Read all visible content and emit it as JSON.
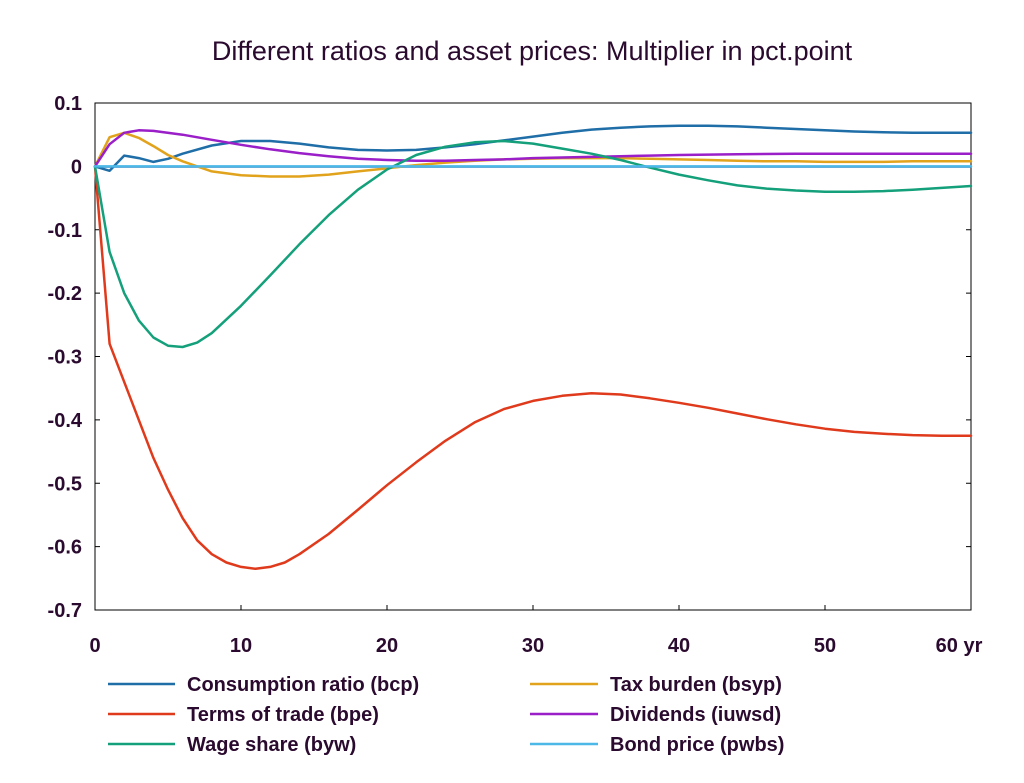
{
  "chart_data": {
    "type": "line",
    "title": "Different ratios and asset prices: Multiplier in pct.point",
    "xlabel": "",
    "ylabel": "",
    "xlim": [
      0,
      60
    ],
    "ylim": [
      -0.7,
      0.1
    ],
    "x_ticks": [
      0,
      10,
      20,
      30,
      40,
      50,
      60
    ],
    "x_tick_labels": [
      "0",
      "10",
      "20",
      "30",
      "40",
      "50",
      "60 yr"
    ],
    "y_ticks": [
      0.1,
      0,
      -0.1,
      -0.2,
      -0.3,
      -0.4,
      -0.5,
      -0.6,
      -0.7
    ],
    "y_tick_labels": [
      "0.1",
      "0",
      "-0.1",
      "-0.2",
      "-0.3",
      "-0.4",
      "-0.5",
      "-0.6",
      "-0.7"
    ],
    "grid": false,
    "legend_position": "bottom",
    "series": [
      {
        "name": "Consumption ratio (bcp)",
        "color": "#1f6ea8",
        "points": [
          [
            0,
            0
          ],
          [
            1,
            -0.007
          ],
          [
            2,
            0.017
          ],
          [
            3,
            0.013
          ],
          [
            4,
            0.007
          ],
          [
            5,
            0.012
          ],
          [
            6,
            0.02
          ],
          [
            8,
            0.033
          ],
          [
            10,
            0.04
          ],
          [
            12,
            0.04
          ],
          [
            14,
            0.036
          ],
          [
            16,
            0.03
          ],
          [
            18,
            0.026
          ],
          [
            20,
            0.025
          ],
          [
            22,
            0.026
          ],
          [
            24,
            0.03
          ],
          [
            26,
            0.035
          ],
          [
            28,
            0.041
          ],
          [
            30,
            0.047
          ],
          [
            32,
            0.053
          ],
          [
            34,
            0.058
          ],
          [
            36,
            0.061
          ],
          [
            38,
            0.063
          ],
          [
            40,
            0.064
          ],
          [
            42,
            0.064
          ],
          [
            44,
            0.063
          ],
          [
            46,
            0.061
          ],
          [
            48,
            0.059
          ],
          [
            50,
            0.057
          ],
          [
            52,
            0.055
          ],
          [
            54,
            0.054
          ],
          [
            56,
            0.053
          ],
          [
            58,
            0.053
          ],
          [
            60,
            0.053
          ]
        ]
      },
      {
        "name": "Tax burden (bsyp)",
        "color": "#e2a31c",
        "points": [
          [
            0,
            0
          ],
          [
            1,
            0.046
          ],
          [
            2,
            0.053
          ],
          [
            3,
            0.045
          ],
          [
            4,
            0.032
          ],
          [
            5,
            0.018
          ],
          [
            6,
            0.008
          ],
          [
            8,
            -0.008
          ],
          [
            10,
            -0.014
          ],
          [
            12,
            -0.016
          ],
          [
            14,
            -0.016
          ],
          [
            16,
            -0.013
          ],
          [
            18,
            -0.008
          ],
          [
            20,
            -0.003
          ],
          [
            22,
            0.002
          ],
          [
            24,
            0.006
          ],
          [
            26,
            0.009
          ],
          [
            28,
            0.011
          ],
          [
            30,
            0.012
          ],
          [
            32,
            0.013
          ],
          [
            34,
            0.013
          ],
          [
            36,
            0.013
          ],
          [
            38,
            0.012
          ],
          [
            40,
            0.011
          ],
          [
            42,
            0.01
          ],
          [
            44,
            0.009
          ],
          [
            46,
            0.008
          ],
          [
            48,
            0.008
          ],
          [
            50,
            0.007
          ],
          [
            52,
            0.007
          ],
          [
            54,
            0.007
          ],
          [
            56,
            0.008
          ],
          [
            58,
            0.008
          ],
          [
            60,
            0.008
          ]
        ]
      },
      {
        "name": "Terms of trade (bpe)",
        "color": "#e03a1c",
        "points": [
          [
            0,
            0
          ],
          [
            1,
            -0.28
          ],
          [
            2,
            -0.34
          ],
          [
            3,
            -0.4
          ],
          [
            4,
            -0.46
          ],
          [
            5,
            -0.51
          ],
          [
            6,
            -0.555
          ],
          [
            7,
            -0.59
          ],
          [
            8,
            -0.612
          ],
          [
            9,
            -0.625
          ],
          [
            10,
            -0.632
          ],
          [
            11,
            -0.635
          ],
          [
            12,
            -0.632
          ],
          [
            13,
            -0.625
          ],
          [
            14,
            -0.612
          ],
          [
            16,
            -0.58
          ],
          [
            18,
            -0.542
          ],
          [
            20,
            -0.503
          ],
          [
            22,
            -0.467
          ],
          [
            24,
            -0.433
          ],
          [
            26,
            -0.404
          ],
          [
            28,
            -0.383
          ],
          [
            30,
            -0.37
          ],
          [
            32,
            -0.362
          ],
          [
            34,
            -0.358
          ],
          [
            36,
            -0.36
          ],
          [
            38,
            -0.366
          ],
          [
            40,
            -0.373
          ],
          [
            42,
            -0.381
          ],
          [
            44,
            -0.39
          ],
          [
            46,
            -0.399
          ],
          [
            48,
            -0.407
          ],
          [
            50,
            -0.414
          ],
          [
            52,
            -0.419
          ],
          [
            54,
            -0.422
          ],
          [
            56,
            -0.424
          ],
          [
            58,
            -0.425
          ],
          [
            60,
            -0.425
          ]
        ]
      },
      {
        "name": "Dividends (iuwsd)",
        "color": "#9a1fc8",
        "points": [
          [
            0,
            0
          ],
          [
            1,
            0.035
          ],
          [
            2,
            0.053
          ],
          [
            3,
            0.057
          ],
          [
            4,
            0.056
          ],
          [
            6,
            0.05
          ],
          [
            8,
            0.042
          ],
          [
            10,
            0.034
          ],
          [
            12,
            0.027
          ],
          [
            14,
            0.021
          ],
          [
            16,
            0.016
          ],
          [
            18,
            0.012
          ],
          [
            20,
            0.01
          ],
          [
            22,
            0.009
          ],
          [
            24,
            0.009
          ],
          [
            26,
            0.01
          ],
          [
            28,
            0.011
          ],
          [
            30,
            0.013
          ],
          [
            32,
            0.014
          ],
          [
            34,
            0.015
          ],
          [
            36,
            0.016
          ],
          [
            38,
            0.017
          ],
          [
            40,
            0.018
          ],
          [
            44,
            0.019
          ],
          [
            48,
            0.02
          ],
          [
            52,
            0.02
          ],
          [
            56,
            0.02
          ],
          [
            60,
            0.02
          ]
        ]
      },
      {
        "name": "Wage share (byw)",
        "color": "#14a07a",
        "points": [
          [
            0,
            0
          ],
          [
            1,
            -0.135
          ],
          [
            2,
            -0.2
          ],
          [
            3,
            -0.243
          ],
          [
            4,
            -0.27
          ],
          [
            5,
            -0.283
          ],
          [
            6,
            -0.285
          ],
          [
            7,
            -0.278
          ],
          [
            8,
            -0.263
          ],
          [
            10,
            -0.22
          ],
          [
            12,
            -0.172
          ],
          [
            14,
            -0.123
          ],
          [
            16,
            -0.077
          ],
          [
            18,
            -0.037
          ],
          [
            20,
            -0.005
          ],
          [
            22,
            0.018
          ],
          [
            24,
            0.031
          ],
          [
            26,
            0.038
          ],
          [
            28,
            0.04
          ],
          [
            30,
            0.036
          ],
          [
            32,
            0.028
          ],
          [
            34,
            0.02
          ],
          [
            36,
            0.01
          ],
          [
            38,
            -0.002
          ],
          [
            40,
            -0.013
          ],
          [
            42,
            -0.022
          ],
          [
            44,
            -0.03
          ],
          [
            46,
            -0.035
          ],
          [
            48,
            -0.038
          ],
          [
            50,
            -0.04
          ],
          [
            52,
            -0.04
          ],
          [
            54,
            -0.039
          ],
          [
            56,
            -0.037
          ],
          [
            58,
            -0.034
          ],
          [
            60,
            -0.031
          ]
        ]
      },
      {
        "name": "Bond price (pwbs)",
        "color": "#4bb8e8",
        "points": [
          [
            0,
            0
          ],
          [
            60,
            0
          ]
        ]
      }
    ]
  }
}
